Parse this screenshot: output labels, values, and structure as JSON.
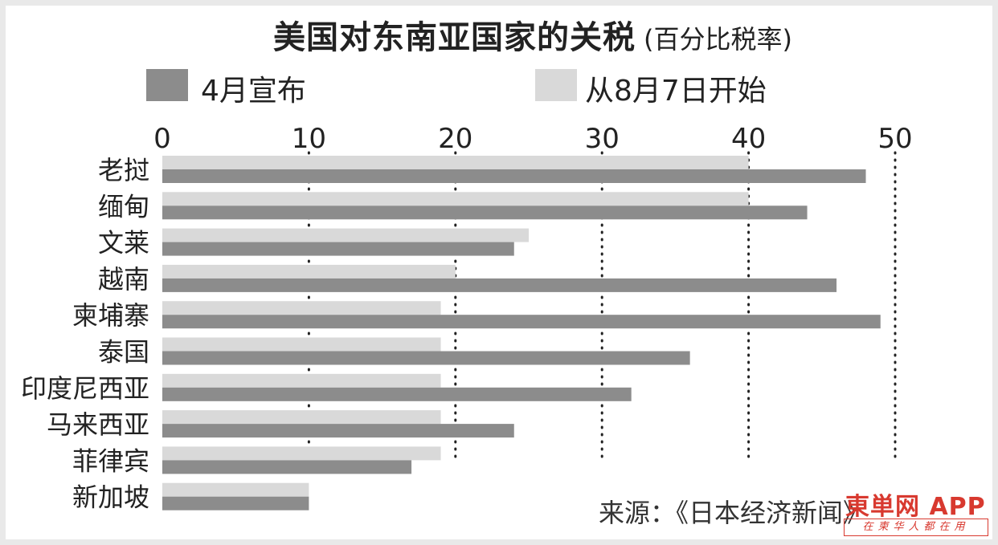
{
  "chart_data": {
    "type": "bar",
    "orientation": "horizontal",
    "title": "美国对东南亚国家的关税",
    "subtitle": "(百分比税率)",
    "categories": [
      "老挝",
      "缅甸",
      "文莱",
      "越南",
      "柬埔寨",
      "泰国",
      "印度尼西亚",
      "马来西亚",
      "菲律宾",
      "新加坡"
    ],
    "series": [
      {
        "name": "从8月7日开始",
        "color": "#d9d9d9",
        "values": [
          40,
          40,
          25,
          20,
          19,
          19,
          19,
          19,
          19,
          10
        ]
      },
      {
        "name": "4月宣布",
        "color": "#8c8c8c",
        "values": [
          48,
          44,
          24,
          46,
          49,
          36,
          32,
          24,
          17,
          10
        ]
      }
    ],
    "xlim": [
      0,
      50
    ],
    "ticks": [
      "0",
      "10",
      "20",
      "30",
      "40",
      "50"
    ],
    "tick_values": [
      0,
      10,
      20,
      30,
      40,
      50
    ],
    "grid": "dotted vertical",
    "legend_placement": "top"
  },
  "legend": [
    {
      "label": "4月宣布",
      "color": "#8c8c8c"
    },
    {
      "label": "从8月7日开始",
      "color": "#d9d9d9"
    }
  ],
  "source": "来源：《日本经济新闻》",
  "watermark": {
    "logo": "東単网 APP",
    "tagline": "在柬华人都在用",
    "color": "#d8392f"
  }
}
